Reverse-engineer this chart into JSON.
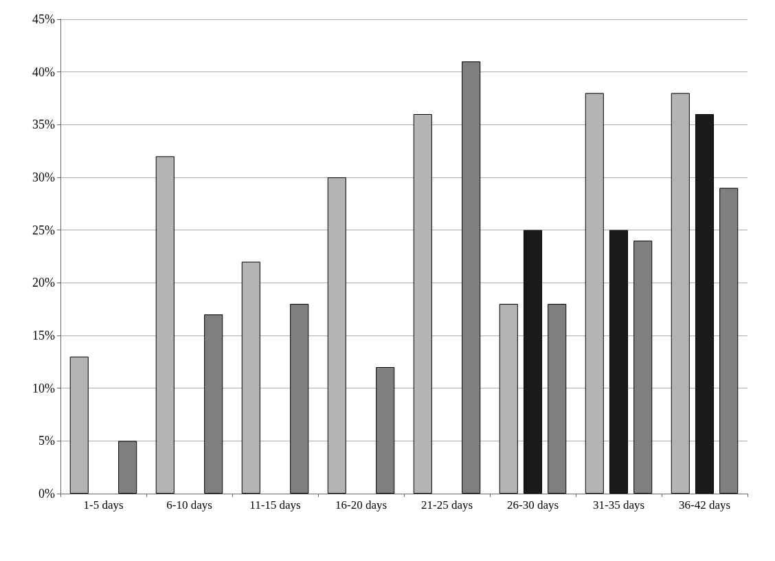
{
  "chart_data": {
    "type": "bar",
    "categories": [
      "1-5 days",
      "6-10 days",
      "11-15 days",
      "16-20 days",
      "21-25 days",
      "26-30 days",
      "31-35 days",
      "36-42 days"
    ],
    "series": [
      {
        "color": "#b4b4b4",
        "values": [
          13,
          32,
          22,
          30,
          36,
          18,
          38,
          38
        ]
      },
      {
        "color": "#1a1a1a",
        "values": [
          null,
          null,
          null,
          null,
          null,
          25,
          25,
          36
        ]
      },
      {
        "color": "#7f7f7f",
        "values": [
          5,
          17,
          18,
          12,
          41,
          18,
          24,
          29
        ]
      }
    ],
    "ylim": [
      0,
      45
    ],
    "yticks": [
      {
        "value": 0,
        "label": "0%"
      },
      {
        "value": 5,
        "label": "5%"
      },
      {
        "value": 10,
        "label": "10%"
      },
      {
        "value": 15,
        "label": "15%"
      },
      {
        "value": 20,
        "label": "20%"
      },
      {
        "value": 25,
        "label": "25%"
      },
      {
        "value": 30,
        "label": "30%"
      },
      {
        "value": 35,
        "label": "35%"
      },
      {
        "value": 40,
        "label": "40%"
      },
      {
        "value": 45,
        "label": "45%"
      }
    ],
    "grid": "y"
  }
}
